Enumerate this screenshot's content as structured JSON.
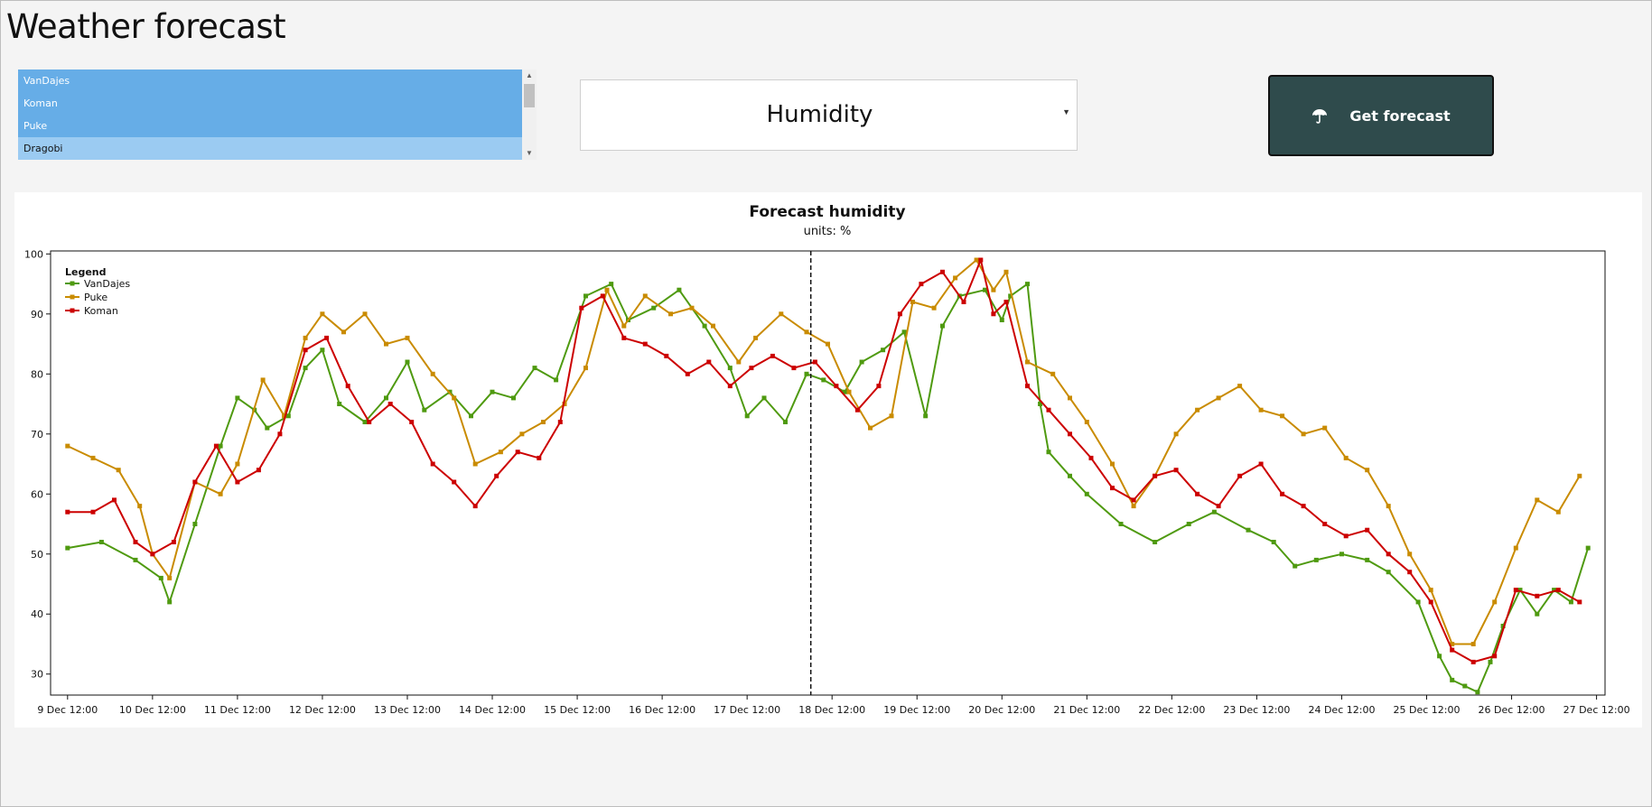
{
  "app": {
    "title": "Weather forecast"
  },
  "locations": {
    "items": [
      {
        "label": "VanDajes",
        "selected": true
      },
      {
        "label": "Koman",
        "selected": true
      },
      {
        "label": "Puke",
        "selected": true
      },
      {
        "label": "Dragobi",
        "selected": true,
        "focused": true
      }
    ]
  },
  "metric_select": {
    "value": "Humidity"
  },
  "actions": {
    "get_forecast_label": "Get forecast",
    "icon": "umbrella-icon"
  },
  "colors": {
    "selection": "#66ade7",
    "button_bg": "#2f4b4c",
    "series_vandajes": "#4f9a10",
    "series_puke": "#c98b00",
    "series_koman": "#cc0000"
  },
  "chart_data": {
    "type": "line",
    "title": "Forecast humidity",
    "subtitle": "units: %",
    "x_labels": [
      "9 Dec 12:00",
      "10 Dec 12:00",
      "11 Dec 12:00",
      "12 Dec 12:00",
      "13 Dec 12:00",
      "14 Dec 12:00",
      "15 Dec 12:00",
      "16 Dec 12:00",
      "17 Dec 12:00",
      "18 Dec 12:00",
      "19 Dec 12:00",
      "20 Dec 12:00",
      "21 Dec 12:00",
      "22 Dec 12:00",
      "23 Dec 12:00",
      "24 Dec 12:00",
      "25 Dec 12:00",
      "26 Dec 12:00",
      "27 Dec 12:00"
    ],
    "x_unit": "days since 9 Dec 12:00",
    "xlim": [
      -0.2,
      18.1
    ],
    "ylim": [
      26.5,
      100.5
    ],
    "y_ticks": [
      30,
      40,
      50,
      60,
      70,
      80,
      90,
      100
    ],
    "now_marker_x": 8.75,
    "legend": {
      "title": "Legend",
      "position": "top-left"
    },
    "grid": false,
    "series": [
      {
        "name": "VanDajes",
        "color": "#4f9a10",
        "points": [
          [
            0,
            51
          ],
          [
            0.4,
            52
          ],
          [
            0.8,
            49
          ],
          [
            1.1,
            46
          ],
          [
            1.2,
            42
          ],
          [
            1.5,
            55
          ],
          [
            1.8,
            68
          ],
          [
            2.0,
            76
          ],
          [
            2.2,
            74
          ],
          [
            2.35,
            71
          ],
          [
            2.6,
            73
          ],
          [
            2.8,
            81
          ],
          [
            3.0,
            84
          ],
          [
            3.2,
            75
          ],
          [
            3.5,
            72
          ],
          [
            3.75,
            76
          ],
          [
            4.0,
            82
          ],
          [
            4.2,
            74
          ],
          [
            4.5,
            77
          ],
          [
            4.75,
            73
          ],
          [
            5.0,
            77
          ],
          [
            5.25,
            76
          ],
          [
            5.5,
            81
          ],
          [
            5.75,
            79
          ],
          [
            6.1,
            93
          ],
          [
            6.4,
            95
          ],
          [
            6.6,
            89
          ],
          [
            6.9,
            91
          ],
          [
            7.2,
            94
          ],
          [
            7.5,
            88
          ],
          [
            7.8,
            81
          ],
          [
            8.0,
            73
          ],
          [
            8.2,
            76
          ],
          [
            8.45,
            72
          ],
          [
            8.7,
            80
          ],
          [
            8.9,
            79
          ],
          [
            9.15,
            77
          ],
          [
            9.35,
            82
          ],
          [
            9.6,
            84
          ],
          [
            9.85,
            87
          ],
          [
            10.1,
            73
          ],
          [
            10.3,
            88
          ],
          [
            10.5,
            93
          ],
          [
            10.8,
            94
          ],
          [
            11.0,
            89
          ],
          [
            11.1,
            93
          ],
          [
            11.3,
            95
          ],
          [
            11.45,
            75
          ],
          [
            11.55,
            67
          ],
          [
            11.8,
            63
          ],
          [
            12.0,
            60
          ],
          [
            12.4,
            55
          ],
          [
            12.8,
            52
          ],
          [
            13.2,
            55
          ],
          [
            13.5,
            57
          ],
          [
            13.9,
            54
          ],
          [
            14.2,
            52
          ],
          [
            14.45,
            48
          ],
          [
            14.7,
            49
          ],
          [
            15.0,
            50
          ],
          [
            15.3,
            49
          ],
          [
            15.55,
            47
          ],
          [
            15.9,
            42
          ],
          [
            16.15,
            33
          ],
          [
            16.3,
            29
          ],
          [
            16.45,
            28
          ],
          [
            16.6,
            27
          ],
          [
            16.75,
            32
          ],
          [
            16.9,
            38
          ],
          [
            17.1,
            44
          ],
          [
            17.3,
            40
          ],
          [
            17.5,
            44
          ],
          [
            17.7,
            42
          ],
          [
            17.9,
            51
          ]
        ]
      },
      {
        "name": "Puke",
        "color": "#c98b00",
        "points": [
          [
            0,
            68
          ],
          [
            0.3,
            66
          ],
          [
            0.6,
            64
          ],
          [
            0.85,
            58
          ],
          [
            1.0,
            50
          ],
          [
            1.2,
            46
          ],
          [
            1.5,
            62
          ],
          [
            1.8,
            60
          ],
          [
            2.0,
            65
          ],
          [
            2.3,
            79
          ],
          [
            2.55,
            73
          ],
          [
            2.8,
            86
          ],
          [
            3.0,
            90
          ],
          [
            3.25,
            87
          ],
          [
            3.5,
            90
          ],
          [
            3.75,
            85
          ],
          [
            4.0,
            86
          ],
          [
            4.3,
            80
          ],
          [
            4.55,
            76
          ],
          [
            4.8,
            65
          ],
          [
            5.1,
            67
          ],
          [
            5.35,
            70
          ],
          [
            5.6,
            72
          ],
          [
            5.85,
            75
          ],
          [
            6.1,
            81
          ],
          [
            6.35,
            94
          ],
          [
            6.55,
            88
          ],
          [
            6.8,
            93
          ],
          [
            7.1,
            90
          ],
          [
            7.35,
            91
          ],
          [
            7.6,
            88
          ],
          [
            7.9,
            82
          ],
          [
            8.1,
            86
          ],
          [
            8.4,
            90
          ],
          [
            8.7,
            87
          ],
          [
            8.95,
            85
          ],
          [
            9.2,
            77
          ],
          [
            9.45,
            71
          ],
          [
            9.7,
            73
          ],
          [
            9.95,
            92
          ],
          [
            10.2,
            91
          ],
          [
            10.45,
            96
          ],
          [
            10.7,
            99
          ],
          [
            10.9,
            94
          ],
          [
            11.05,
            97
          ],
          [
            11.3,
            82
          ],
          [
            11.6,
            80
          ],
          [
            11.8,
            76
          ],
          [
            12.0,
            72
          ],
          [
            12.3,
            65
          ],
          [
            12.55,
            58
          ],
          [
            12.8,
            63
          ],
          [
            13.05,
            70
          ],
          [
            13.3,
            74
          ],
          [
            13.55,
            76
          ],
          [
            13.8,
            78
          ],
          [
            14.05,
            74
          ],
          [
            14.3,
            73
          ],
          [
            14.55,
            70
          ],
          [
            14.8,
            71
          ],
          [
            15.05,
            66
          ],
          [
            15.3,
            64
          ],
          [
            15.55,
            58
          ],
          [
            15.8,
            50
          ],
          [
            16.05,
            44
          ],
          [
            16.3,
            35
          ],
          [
            16.55,
            35
          ],
          [
            16.8,
            42
          ],
          [
            17.05,
            51
          ],
          [
            17.3,
            59
          ],
          [
            17.55,
            57
          ],
          [
            17.8,
            63
          ]
        ]
      },
      {
        "name": "Koman",
        "color": "#cc0000",
        "points": [
          [
            0,
            57
          ],
          [
            0.3,
            57
          ],
          [
            0.55,
            59
          ],
          [
            0.8,
            52
          ],
          [
            1.0,
            50
          ],
          [
            1.25,
            52
          ],
          [
            1.5,
            62
          ],
          [
            1.75,
            68
          ],
          [
            2.0,
            62
          ],
          [
            2.25,
            64
          ],
          [
            2.5,
            70
          ],
          [
            2.8,
            84
          ],
          [
            3.05,
            86
          ],
          [
            3.3,
            78
          ],
          [
            3.55,
            72
          ],
          [
            3.8,
            75
          ],
          [
            4.05,
            72
          ],
          [
            4.3,
            65
          ],
          [
            4.55,
            62
          ],
          [
            4.8,
            58
          ],
          [
            5.05,
            63
          ],
          [
            5.3,
            67
          ],
          [
            5.55,
            66
          ],
          [
            5.8,
            72
          ],
          [
            6.05,
            91
          ],
          [
            6.3,
            93
          ],
          [
            6.55,
            86
          ],
          [
            6.8,
            85
          ],
          [
            7.05,
            83
          ],
          [
            7.3,
            80
          ],
          [
            7.55,
            82
          ],
          [
            7.8,
            78
          ],
          [
            8.05,
            81
          ],
          [
            8.3,
            83
          ],
          [
            8.55,
            81
          ],
          [
            8.8,
            82
          ],
          [
            9.05,
            78
          ],
          [
            9.3,
            74
          ],
          [
            9.55,
            78
          ],
          [
            9.8,
            90
          ],
          [
            10.05,
            95
          ],
          [
            10.3,
            97
          ],
          [
            10.55,
            92
          ],
          [
            10.75,
            99
          ],
          [
            10.9,
            90
          ],
          [
            11.05,
            92
          ],
          [
            11.3,
            78
          ],
          [
            11.55,
            74
          ],
          [
            11.8,
            70
          ],
          [
            12.05,
            66
          ],
          [
            12.3,
            61
          ],
          [
            12.55,
            59
          ],
          [
            12.8,
            63
          ],
          [
            13.05,
            64
          ],
          [
            13.3,
            60
          ],
          [
            13.55,
            58
          ],
          [
            13.8,
            63
          ],
          [
            14.05,
            65
          ],
          [
            14.3,
            60
          ],
          [
            14.55,
            58
          ],
          [
            14.8,
            55
          ],
          [
            15.05,
            53
          ],
          [
            15.3,
            54
          ],
          [
            15.55,
            50
          ],
          [
            15.8,
            47
          ],
          [
            16.05,
            42
          ],
          [
            16.3,
            34
          ],
          [
            16.55,
            32
          ],
          [
            16.8,
            33
          ],
          [
            17.05,
            44
          ],
          [
            17.3,
            43
          ],
          [
            17.55,
            44
          ],
          [
            17.8,
            42
          ]
        ]
      }
    ]
  }
}
